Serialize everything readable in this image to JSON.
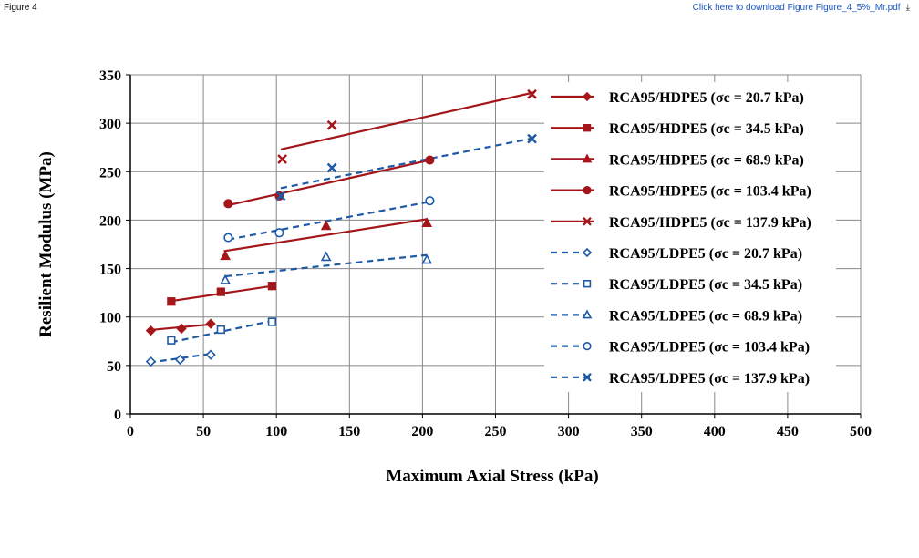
{
  "header": {
    "figure_label": "Figure 4",
    "download_text": "Click here to download Figure Figure_4_5%_Mr.pdf",
    "download_icon": "download-icon"
  },
  "colors": {
    "hdpe": "#a4161a",
    "ldpe": "#1f5aa6",
    "grid": "#888888",
    "axis": "#000000"
  },
  "chart_data": {
    "type": "scatter",
    "xlabel": "Maximum Axial Stress (kPa)",
    "ylabel": "Resilient Modulus (MPa)",
    "xlim": [
      0,
      500
    ],
    "ylim": [
      0,
      350
    ],
    "xticks": [
      0,
      50,
      100,
      150,
      200,
      250,
      300,
      350,
      400,
      450,
      500
    ],
    "yticks": [
      0,
      50,
      100,
      150,
      200,
      250,
      300,
      350
    ],
    "grid": true,
    "legend_position": "right",
    "series": [
      {
        "name": "RCA95/HDPE5 (σc = 20.7 kPa)",
        "material": "hdpe",
        "marker": "diamond",
        "filled": true,
        "dash": false,
        "x": [
          14,
          35,
          55
        ],
        "y": [
          86,
          88,
          93
        ],
        "fit_x": [
          13,
          56
        ],
        "fit_y": [
          86.5,
          92.5
        ]
      },
      {
        "name": "RCA95/HDPE5 (σc = 34.5 kPa)",
        "material": "hdpe",
        "marker": "square",
        "filled": true,
        "dash": false,
        "x": [
          28,
          62,
          97
        ],
        "y": [
          116,
          126,
          132
        ],
        "fit_x": [
          28,
          97
        ],
        "fit_y": [
          116.5,
          132
        ]
      },
      {
        "name": "RCA95/HDPE5 (σc = 68.9 kPa)",
        "material": "hdpe",
        "marker": "triangle",
        "filled": true,
        "dash": false,
        "x": [
          65,
          134,
          203
        ],
        "y": [
          163,
          194,
          197
        ],
        "fit_x": [
          64,
          203
        ],
        "fit_y": [
          168,
          201
        ]
      },
      {
        "name": "RCA95/HDPE5 (σc = 103.4 kPa)",
        "material": "hdpe",
        "marker": "circle",
        "filled": true,
        "dash": false,
        "x": [
          67,
          102,
          205
        ],
        "y": [
          217,
          225,
          262
        ],
        "fit_x": [
          66,
          205
        ],
        "fit_y": [
          215,
          262
        ]
      },
      {
        "name": "RCA95/HDPE5 (σc = 137.9 kPa)",
        "material": "hdpe",
        "marker": "x",
        "filled": true,
        "dash": false,
        "x": [
          104,
          138,
          275
        ],
        "y": [
          263,
          298,
          330
        ],
        "fit_x": [
          103,
          277
        ],
        "fit_y": [
          273,
          332
        ]
      },
      {
        "name": "RCA95/LDPE5 (σc = 20.7 kPa)",
        "material": "ldpe",
        "marker": "diamond",
        "filled": false,
        "dash": true,
        "x": [
          14,
          34,
          55
        ],
        "y": [
          54,
          56,
          61
        ],
        "fit_x": [
          13,
          55
        ],
        "fit_y": [
          53,
          62
        ]
      },
      {
        "name": "RCA95/LDPE5 (σc = 34.5 kPa)",
        "material": "ldpe",
        "marker": "square",
        "filled": false,
        "dash": true,
        "x": [
          28,
          62,
          97
        ],
        "y": [
          76,
          87,
          95
        ],
        "fit_x": [
          28,
          97
        ],
        "fit_y": [
          74,
          96
        ]
      },
      {
        "name": "RCA95/LDPE5 (σc = 68.9 kPa)",
        "material": "ldpe",
        "marker": "triangle",
        "filled": false,
        "dash": true,
        "x": [
          65,
          134,
          203
        ],
        "y": [
          138,
          162,
          159
        ],
        "fit_x": [
          65,
          203
        ],
        "fit_y": [
          142,
          164
        ]
      },
      {
        "name": "RCA95/LDPE5 (σc = 103.4 kPa)",
        "material": "ldpe",
        "marker": "circle",
        "filled": false,
        "dash": true,
        "x": [
          67,
          102,
          205
        ],
        "y": [
          182,
          187,
          220
        ],
        "fit_x": [
          67,
          205
        ],
        "fit_y": [
          180,
          219
        ]
      },
      {
        "name": "RCA95/LDPE5 (σc = 137.9 kPa)",
        "material": "ldpe",
        "marker": "x",
        "filled": false,
        "dash": true,
        "x": [
          103,
          138,
          275
        ],
        "y": [
          225,
          254,
          284
        ],
        "fit_x": [
          103,
          277
        ],
        "fit_y": [
          233,
          285
        ]
      }
    ]
  }
}
